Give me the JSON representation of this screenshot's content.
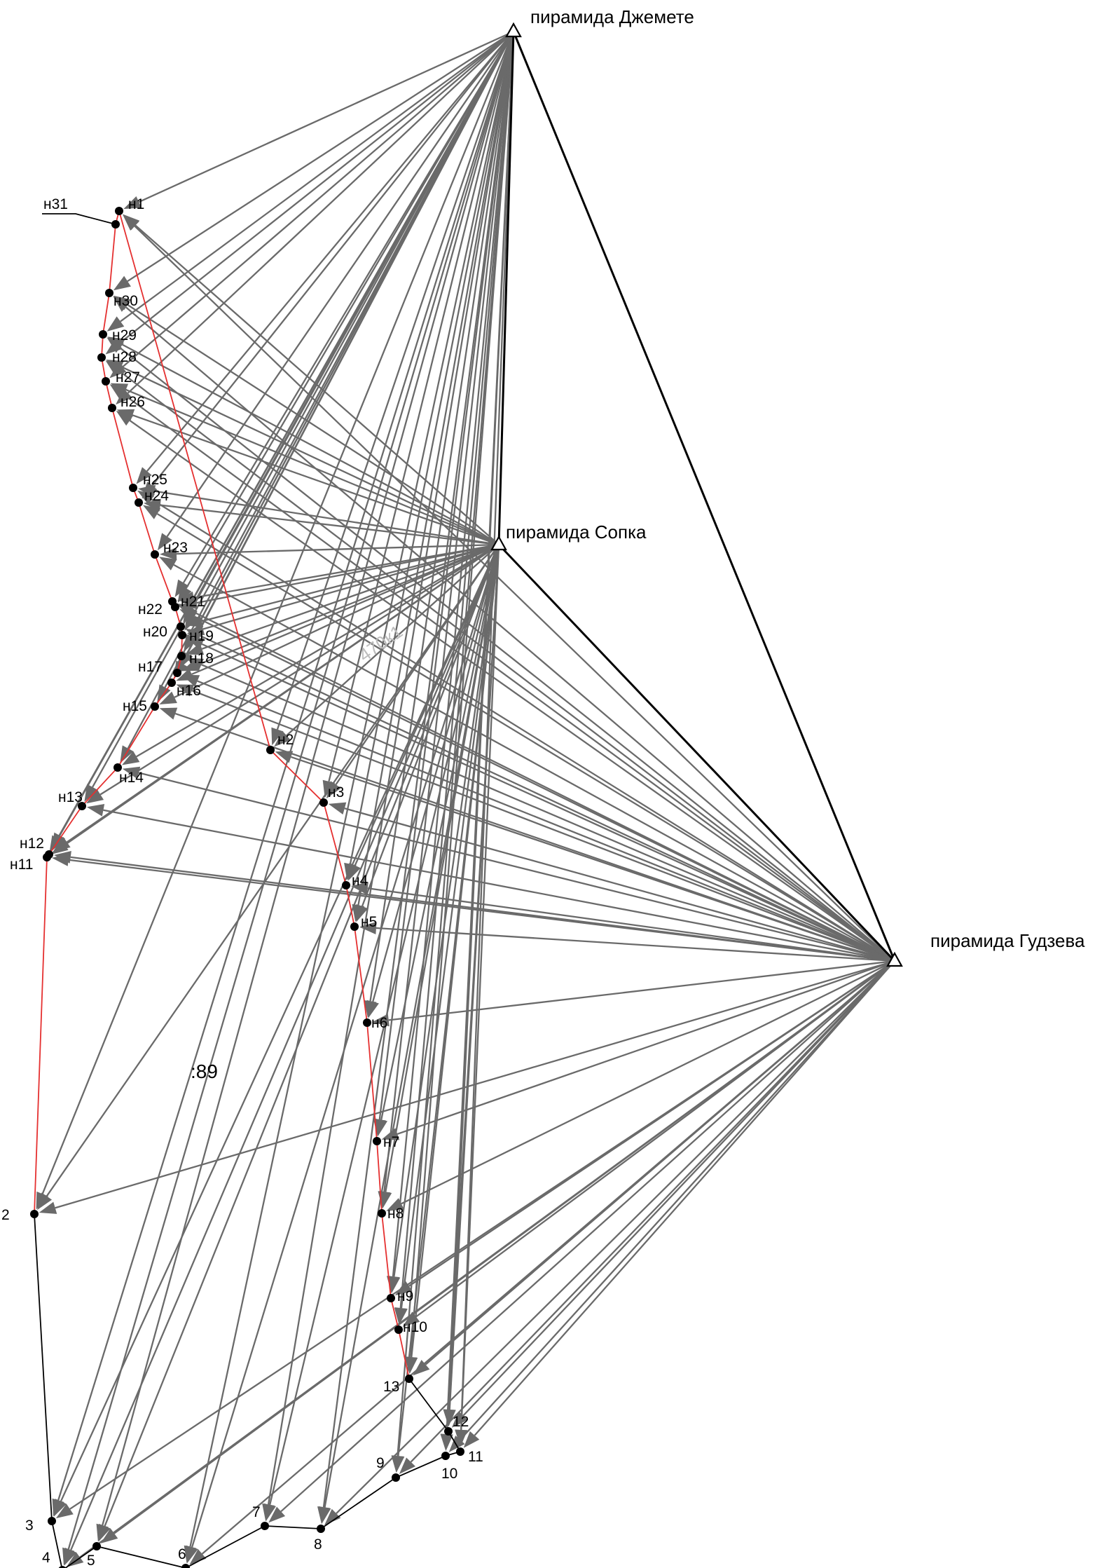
{
  "base_stations": [
    {
      "id": "dzh",
      "label": "пирамида Джемете"
    },
    {
      "id": "sop",
      "label": "пирамида Сопка"
    },
    {
      "id": "gud",
      "label": "пирамида Гудзева"
    }
  ],
  "points": [
    {
      "id": "n1",
      "label": "н1"
    },
    {
      "id": "n2",
      "label": "н2"
    },
    {
      "id": "n3",
      "label": "н3"
    },
    {
      "id": "n4",
      "label": "н4"
    },
    {
      "id": "n5",
      "label": "н5"
    },
    {
      "id": "n6",
      "label": "н6"
    },
    {
      "id": "n7",
      "label": "н7"
    },
    {
      "id": "n8",
      "label": "н8"
    },
    {
      "id": "n9",
      "label": "н9"
    },
    {
      "id": "n10",
      "label": "н10"
    },
    {
      "id": "n11",
      "label": "н11"
    },
    {
      "id": "n12",
      "label": "н12"
    },
    {
      "id": "n13",
      "label": "н13"
    },
    {
      "id": "n14",
      "label": "н14"
    },
    {
      "id": "n15",
      "label": "н15"
    },
    {
      "id": "n16",
      "label": "н16"
    },
    {
      "id": "n17",
      "label": "н17"
    },
    {
      "id": "n18",
      "label": "н18"
    },
    {
      "id": "n19",
      "label": "н19"
    },
    {
      "id": "n20",
      "label": "н20"
    },
    {
      "id": "n21",
      "label": "н21"
    },
    {
      "id": "n22",
      "label": "н22"
    },
    {
      "id": "n23",
      "label": "н23"
    },
    {
      "id": "n24",
      "label": "н24"
    },
    {
      "id": "n25",
      "label": "н25"
    },
    {
      "id": "n26",
      "label": "н26"
    },
    {
      "id": "n27",
      "label": "н27"
    },
    {
      "id": "n28",
      "label": "н28"
    },
    {
      "id": "n29",
      "label": "н29"
    },
    {
      "id": "n30",
      "label": "н30"
    },
    {
      "id": "n31",
      "label": "н31"
    },
    {
      "id": "p2",
      "label": "2"
    },
    {
      "id": "p3",
      "label": "3"
    },
    {
      "id": "p4",
      "label": "4"
    },
    {
      "id": "p5",
      "label": "5"
    },
    {
      "id": "p6",
      "label": "6"
    },
    {
      "id": "p7",
      "label": "7"
    },
    {
      "id": "p8",
      "label": "8"
    },
    {
      "id": "p9",
      "label": "9"
    },
    {
      "id": "p10",
      "label": "10"
    },
    {
      "id": "p11",
      "label": "11"
    },
    {
      "id": "p12",
      "label": "12"
    },
    {
      "id": "p13",
      "label": "13"
    }
  ],
  "annotations": {
    "scale_mark": ":89",
    "faint_mark": "470к1"
  },
  "colors": {
    "rays": "#6a6a6a",
    "traverse": "#e53030",
    "boundary": "#000000",
    "background": "#ffffff"
  }
}
